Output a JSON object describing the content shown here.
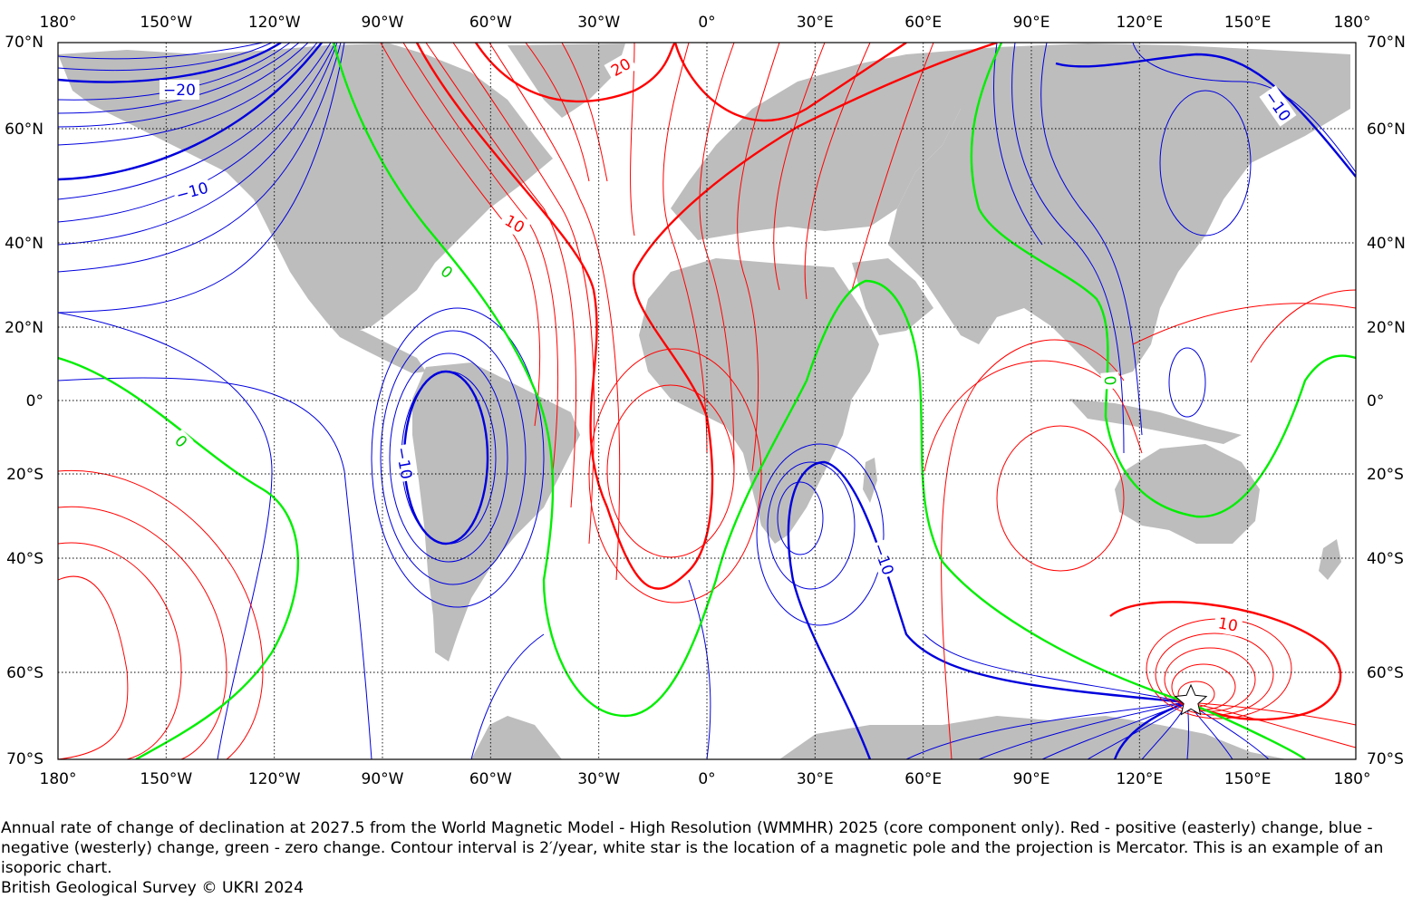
{
  "map": {
    "projection": "Mercator",
    "lon_range": [
      -180,
      180
    ],
    "lat_range": [
      -70,
      70
    ],
    "lon_ticks": [
      "180°",
      "150°W",
      "120°W",
      "90°W",
      "60°W",
      "30°W",
      "0°",
      "30°E",
      "60°E",
      "90°E",
      "120°E",
      "150°E",
      "180°"
    ],
    "lat_ticks": [
      "70°N",
      "60°N",
      "40°N",
      "20°N",
      "0°",
      "20°S",
      "40°S",
      "60°S",
      "70°S"
    ],
    "colors": {
      "land": "#bdbdbd",
      "positive": "#ff0000",
      "negative": "#0000dd",
      "zero": "#00ee00",
      "grid": "#000000"
    },
    "contour_labels": [
      {
        "text": "−20",
        "color": "negative"
      },
      {
        "text": "−10",
        "color": "negative"
      },
      {
        "text": "20",
        "color": "positive"
      },
      {
        "text": "10",
        "color": "positive"
      },
      {
        "text": "0",
        "color": "zero"
      },
      {
        "text": "0",
        "color": "zero"
      },
      {
        "text": "−10",
        "color": "negative"
      },
      {
        "text": "−10",
        "color": "negative"
      },
      {
        "text": "−10",
        "color": "negative"
      },
      {
        "text": "10",
        "color": "positive"
      },
      {
        "text": "0",
        "color": "zero"
      }
    ],
    "pole_marker": "white-star"
  },
  "caption": {
    "text": "Annual rate of change of declination at 2027.5 from the World Magnetic Model - High Resolution (WMMHR) 2025 (core component only). Red - positive (easterly) change, blue - negative (westerly) change, green - zero change. Contour interval is 2′/year, white star is the location of a magnetic pole and the projection is Mercator. This is an example of an isoporic chart.",
    "credit": "British Geological Survey © UKRI 2024"
  }
}
